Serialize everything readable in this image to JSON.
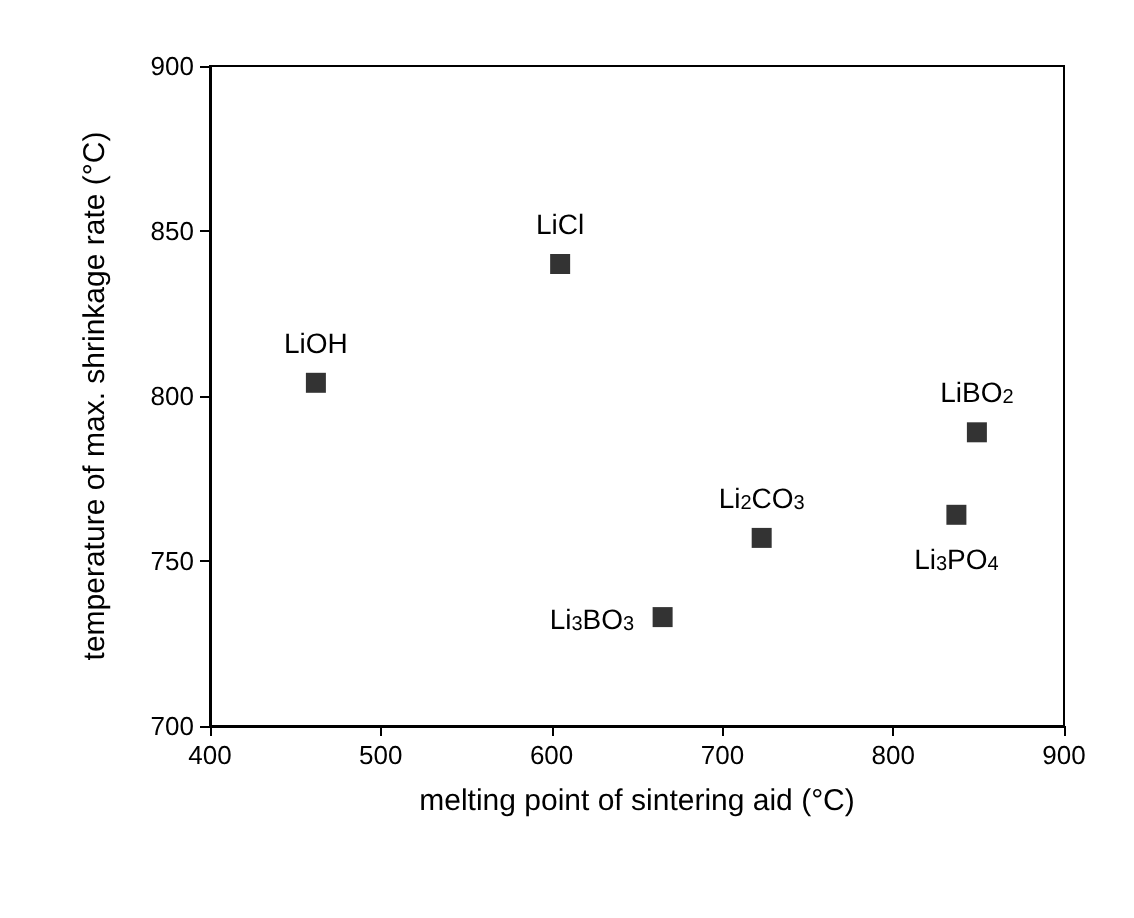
{
  "chart_data": {
    "type": "scatter",
    "xlabel": "melting point of sintering aid (°C)",
    "ylabel": "temperature of max. shrinkage rate (°C)",
    "x": [
      462,
      605,
      665,
      723,
      837,
      849
    ],
    "values": [
      804,
      840,
      733,
      757,
      764,
      789
    ],
    "color": "#000000",
    "marker": "square",
    "grid": false,
    "xlim": [
      400,
      900
    ],
    "xticks": [
      400,
      500,
      600,
      700,
      800,
      900
    ],
    "ylim": [
      700,
      900
    ],
    "yticks": [
      700,
      750,
      800,
      850,
      900
    ],
    "annotations": [
      {
        "text": "LiOH",
        "x": 462,
        "y": 804
      },
      {
        "text": "LiCl",
        "x": 605,
        "y": 840
      },
      {
        "text": "Li$_{3}$BO$_{3}$",
        "x": 665,
        "y": 733
      },
      {
        "text": "Li$_{2}$CO$_{3}$",
        "x": 723,
        "y": 757
      },
      {
        "text": "Li$_{3}$PO$_{4}$",
        "x": 837,
        "y": 764
      },
      {
        "text": "LiBO$_{2}$",
        "x": 849,
        "y": 789
      }
    ]
  }
}
